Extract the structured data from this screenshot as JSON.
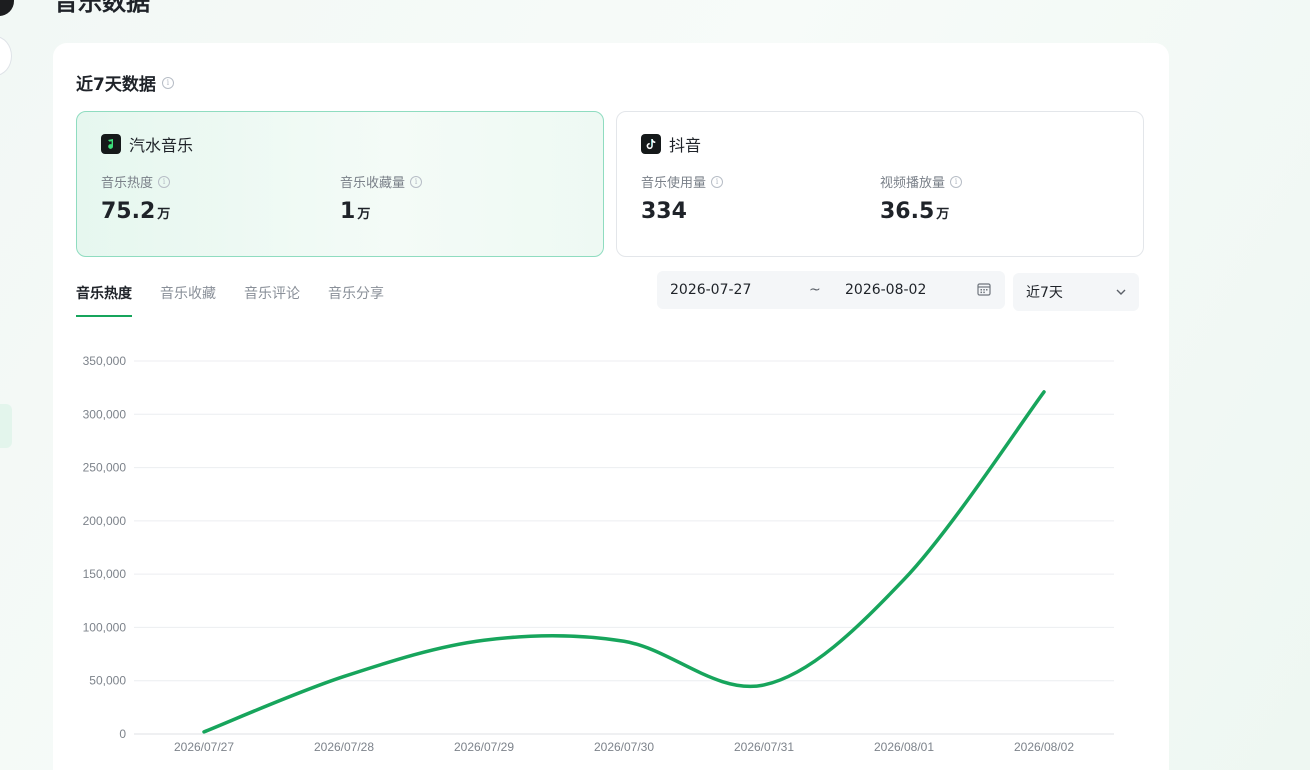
{
  "page": {
    "title": "音乐数据"
  },
  "section": {
    "title": "近7天数据"
  },
  "platforms": [
    {
      "name": "汽水音乐",
      "icon": "qishui-music-logo-icon",
      "metrics": [
        {
          "label": "音乐热度",
          "value": "75.2",
          "unit": "万"
        },
        {
          "label": "音乐收藏量",
          "value": "1",
          "unit": "万"
        }
      ]
    },
    {
      "name": "抖音",
      "icon": "douyin-logo-icon",
      "metrics": [
        {
          "label": "音乐使用量",
          "value": "334",
          "unit": ""
        },
        {
          "label": "视频播放量",
          "value": "36.5",
          "unit": "万"
        }
      ]
    }
  ],
  "tabs": [
    "音乐热度",
    "音乐收藏",
    "音乐评论",
    "音乐分享"
  ],
  "active_tab": "音乐热度",
  "date_range": {
    "start": "2026-07-27",
    "separator": "~",
    "end": "2026-08-02"
  },
  "period_select": {
    "value": "近7天"
  },
  "colors": {
    "accent": "#17a55c",
    "line": "#17a55c"
  },
  "chart_data": {
    "type": "line",
    "x": [
      "2026/07/27",
      "2026/07/28",
      "2026/07/29",
      "2026/07/30",
      "2026/07/31",
      "2026/08/01",
      "2026/08/02"
    ],
    "y_tick_labels": [
      "0",
      "50,000",
      "100,000",
      "150,000",
      "200,000",
      "250,000",
      "300,000",
      "350,000"
    ],
    "series": [
      {
        "values": [
          2000,
          54000,
          88000,
          87000,
          46000,
          145000,
          321000
        ]
      }
    ],
    "ylim": [
      0,
      350000
    ],
    "grid": true,
    "smooth": true
  }
}
